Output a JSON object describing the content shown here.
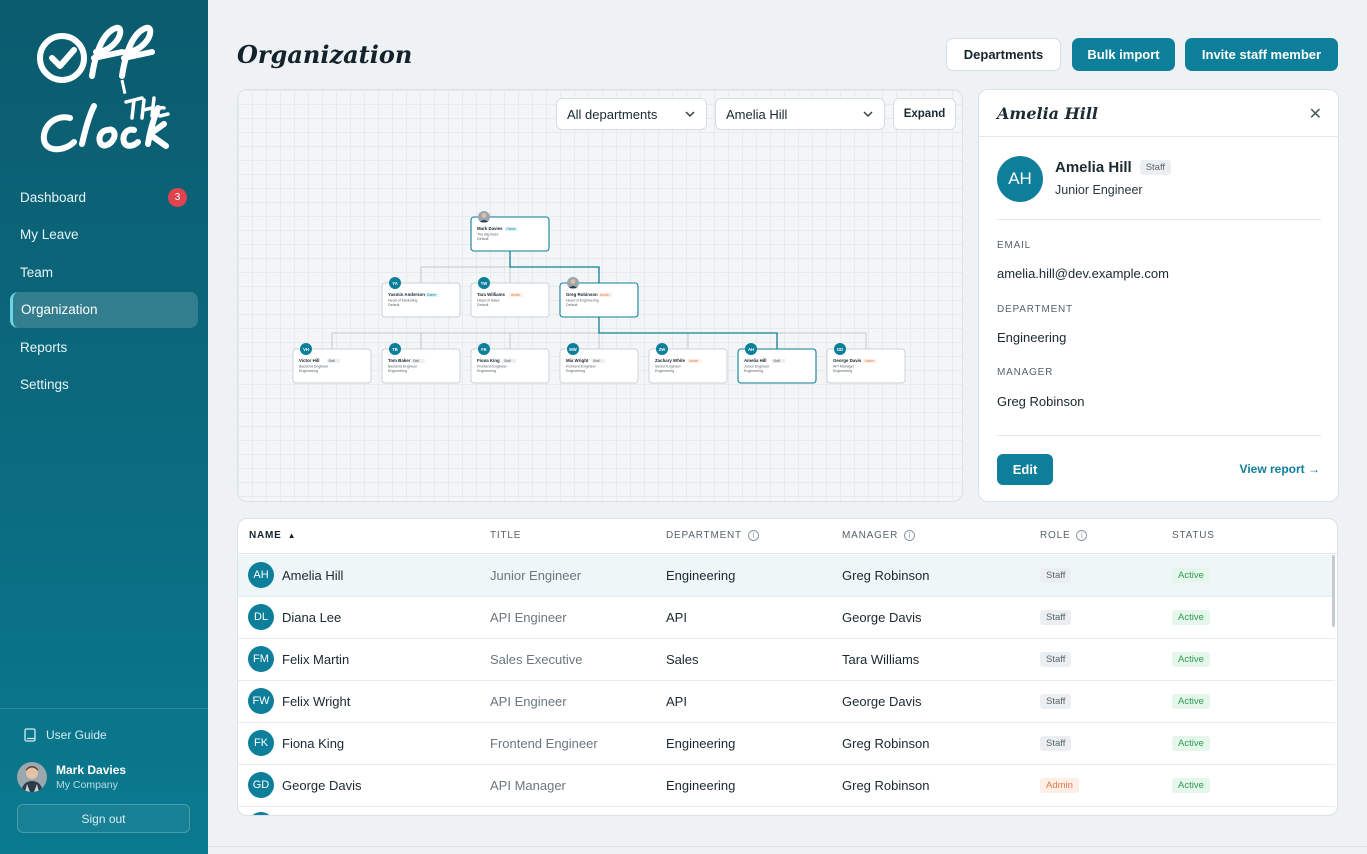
{
  "brand": {
    "logo_text_1": "Off",
    "logo_text_2": "The",
    "logo_text_3": "Clock"
  },
  "sidebar": {
    "items": [
      {
        "label": "Dashboard",
        "badge": "3"
      },
      {
        "label": "My Leave"
      },
      {
        "label": "Team"
      },
      {
        "label": "Organization",
        "active": true
      },
      {
        "label": "Reports"
      },
      {
        "label": "Settings"
      }
    ],
    "user_guide": "User Guide",
    "user": {
      "name": "Mark Davies",
      "company": "My Company"
    },
    "sign_out": "Sign out"
  },
  "header": {
    "title": "Organization",
    "buttons": {
      "departments": "Departments",
      "bulk_import": "Bulk import",
      "invite": "Invite staff member"
    }
  },
  "org": {
    "department_select": "All departments",
    "person_select": "Amelia Hill",
    "expand": "Expand",
    "nodes": [
      {
        "initials": "MD",
        "name": "Mark Davies",
        "role": "Owner",
        "title": "The Big Boss",
        "dept": "Default",
        "photo": true
      },
      {
        "initials": "YA",
        "name": "Yasmin Anderson",
        "role": "Owner",
        "title": "Head of Marketing",
        "dept": "Default"
      },
      {
        "initials": "TW",
        "name": "Tara Williams",
        "role": "Admin",
        "title": "Head of Sales",
        "dept": "Default"
      },
      {
        "initials": "GR",
        "name": "Greg Robinson",
        "role": "Admin",
        "title": "Head of Engineering",
        "dept": "Default",
        "photo": true
      },
      {
        "initials": "VH",
        "name": "Victor Hill",
        "role": "Staff",
        "title": "Backend Engineer",
        "dept": "Engineering"
      },
      {
        "initials": "TB",
        "name": "Tom Baker",
        "role": "Staff",
        "title": "Backend Engineer",
        "dept": "Engineering"
      },
      {
        "initials": "FK",
        "name": "Fiona King",
        "role": "Staff",
        "title": "Frontend Engineer",
        "dept": "Engineering"
      },
      {
        "initials": "MW",
        "name": "Mia Wright",
        "role": "Staff",
        "title": "Frontend Engineer",
        "dept": "Engineering"
      },
      {
        "initials": "ZW",
        "name": "Zachary White",
        "role": "Admin",
        "title": "Senior Engineer",
        "dept": "Engineering"
      },
      {
        "initials": "AH",
        "name": "Amelia Hill",
        "role": "Staff",
        "title": "Junior Engineer",
        "dept": "Engineering"
      },
      {
        "initials": "GD",
        "name": "George Davis",
        "role": "Admin",
        "title": "API Manager",
        "dept": "Engineering"
      }
    ]
  },
  "detail": {
    "title": "Amelia Hill",
    "initials": "AH",
    "name": "Amelia Hill",
    "role_tag": "Staff",
    "job_title": "Junior Engineer",
    "email_label": "EMAIL",
    "email": "amelia.hill@dev.example.com",
    "department_label": "DEPARTMENT",
    "department": "Engineering",
    "manager_label": "MANAGER",
    "manager": "Greg Robinson",
    "edit": "Edit",
    "view_report": "View report →"
  },
  "table": {
    "headers": {
      "name": "NAME",
      "sort_indicator": "▲",
      "title": "TITLE",
      "department": "DEPARTMENT",
      "manager": "MANAGER",
      "role": "ROLE",
      "status": "STATUS"
    },
    "rows": [
      {
        "initials": "AH",
        "name": "Amelia Hill",
        "title": "Junior Engineer",
        "department": "Engineering",
        "manager": "Greg Robinson",
        "role": "Staff",
        "status": "Active"
      },
      {
        "initials": "DL",
        "name": "Diana Lee",
        "title": "API Engineer",
        "department": "API",
        "manager": "George Davis",
        "role": "Staff",
        "status": "Active"
      },
      {
        "initials": "FM",
        "name": "Felix Martin",
        "title": "Sales Executive",
        "department": "Sales",
        "manager": "Tara Williams",
        "role": "Staff",
        "status": "Active"
      },
      {
        "initials": "FW",
        "name": "Felix Wright",
        "title": "API Engineer",
        "department": "API",
        "manager": "George Davis",
        "role": "Staff",
        "status": "Active"
      },
      {
        "initials": "FK",
        "name": "Fiona King",
        "title": "Frontend Engineer",
        "department": "Engineering",
        "manager": "Greg Robinson",
        "role": "Staff",
        "status": "Active"
      },
      {
        "initials": "GD",
        "name": "George Davis",
        "title": "API Manager",
        "department": "Engineering",
        "manager": "Greg Robinson",
        "role": "Admin",
        "status": "Active"
      }
    ]
  },
  "colors": {
    "accent": "#0e7f9a",
    "sidebar": "#0b6b80",
    "badge": "#e0434d",
    "active_status": "#2f9a55",
    "admin": "#e07a4a"
  }
}
